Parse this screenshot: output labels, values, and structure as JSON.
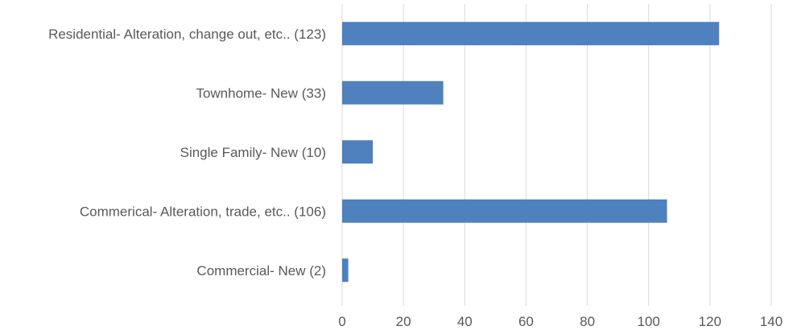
{
  "chart_data": {
    "type": "bar",
    "orientation": "horizontal",
    "categories": [
      "Residential- Alteration, change out, etc.. (123)",
      "Townhome- New (33)",
      "Single Family- New (10)",
      "Commerical- Alteration, trade, etc.. (106)",
      "Commercial- New (2)"
    ],
    "values": [
      123,
      33,
      10,
      106,
      2
    ],
    "xlim": [
      0,
      140
    ],
    "xticks": [
      "0",
      "20",
      "40",
      "60",
      "80",
      "100",
      "120",
      "140"
    ],
    "grid": true,
    "legend": "none",
    "title": "",
    "xlabel": "",
    "ylabel": ""
  },
  "colors": {
    "bar": "#4e81bd",
    "grid": "#d9d9d9",
    "text": "#595959"
  }
}
